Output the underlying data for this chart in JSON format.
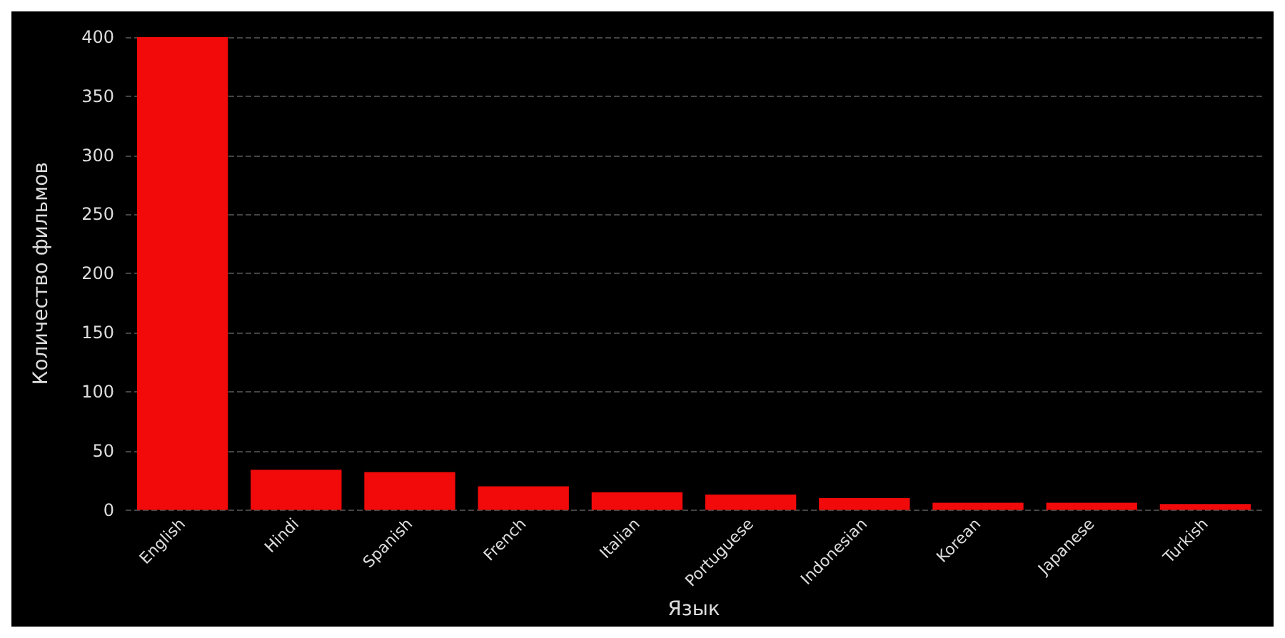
{
  "chart_data": {
    "type": "bar",
    "xlabel": "Язык",
    "ylabel": "Количество фильмов",
    "categories": [
      "English",
      "Hindi",
      "Spanish",
      "French",
      "Italian",
      "Portuguese",
      "Indonesian",
      "Korean",
      "Japanese",
      "Turkish"
    ],
    "values": [
      400,
      34,
      32,
      20,
      15,
      13,
      10,
      6,
      6,
      5
    ],
    "color": "#f20a0a",
    "ylim": [
      0,
      400
    ],
    "yticks": [
      0,
      50,
      100,
      150,
      200,
      250,
      300,
      350,
      400
    ],
    "grid": "y"
  }
}
